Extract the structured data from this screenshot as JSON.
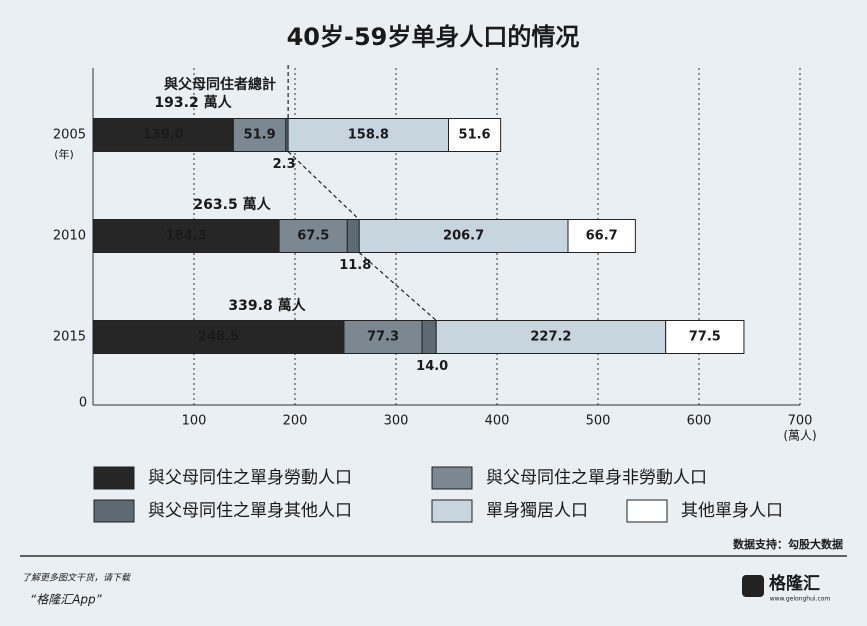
{
  "chart_data": {
    "type": "stacked-barh",
    "title": "40岁-59岁单身人口的情况",
    "categories": [
      "2005",
      "2010",
      "2015"
    ],
    "category_unit": "(年)",
    "x_unit": "(萬人)",
    "xlim": [
      0,
      700
    ],
    "xticks": [
      0,
      100,
      200,
      300,
      400,
      500,
      600,
      700
    ],
    "grid": true,
    "series": [
      {
        "name": "與父母同住之單身勞動人口",
        "color": "#262626",
        "text_color": "#ffffff",
        "values": [
          139.0,
          184.3,
          248.5
        ],
        "value_labels": [
          "139.0",
          "184.3",
          "248.5"
        ]
      },
      {
        "name": "與父母同住之單身非勞動人口",
        "color": "#7b8891",
        "text_color": "#1a1a1a",
        "values": [
          51.9,
          67.5,
          77.3
        ],
        "value_labels": [
          "51.9",
          "67.5",
          "77.3"
        ]
      },
      {
        "name": "與父母同住之單身其他人口",
        "color": "#5e6a72",
        "text_color": "#1a1a1a",
        "values": [
          2.3,
          11.8,
          14.0
        ],
        "value_labels": [
          "2.3",
          "11.8",
          "14.0"
        ]
      },
      {
        "name": "單身獨居人口",
        "color": "#c7d5de",
        "text_color": "#1a1a1a",
        "values": [
          158.8,
          206.7,
          227.2
        ],
        "value_labels": [
          "158.8",
          "206.7",
          "227.2"
        ]
      },
      {
        "name": "其他單身人口",
        "color": "#ffffff",
        "text_color": "#1a1a1a",
        "values": [
          51.6,
          66.7,
          77.5
        ],
        "value_labels": [
          "51.6",
          "66.7",
          "77.5"
        ]
      }
    ],
    "total_title": "與父母同住者總計",
    "totals": {
      "values": [
        193.2,
        263.5,
        339.8
      ],
      "value_labels": [
        "193.2 萬人",
        "263.5 萬人",
        "339.8 萬人"
      ]
    }
  },
  "footer": {
    "source": "数据支持：勾股大数据",
    "promo": "了解更多图文干货，请下载",
    "app": "“格隆汇App”",
    "logo": "格隆汇",
    "logo_url": "www.gelonghui.com"
  }
}
